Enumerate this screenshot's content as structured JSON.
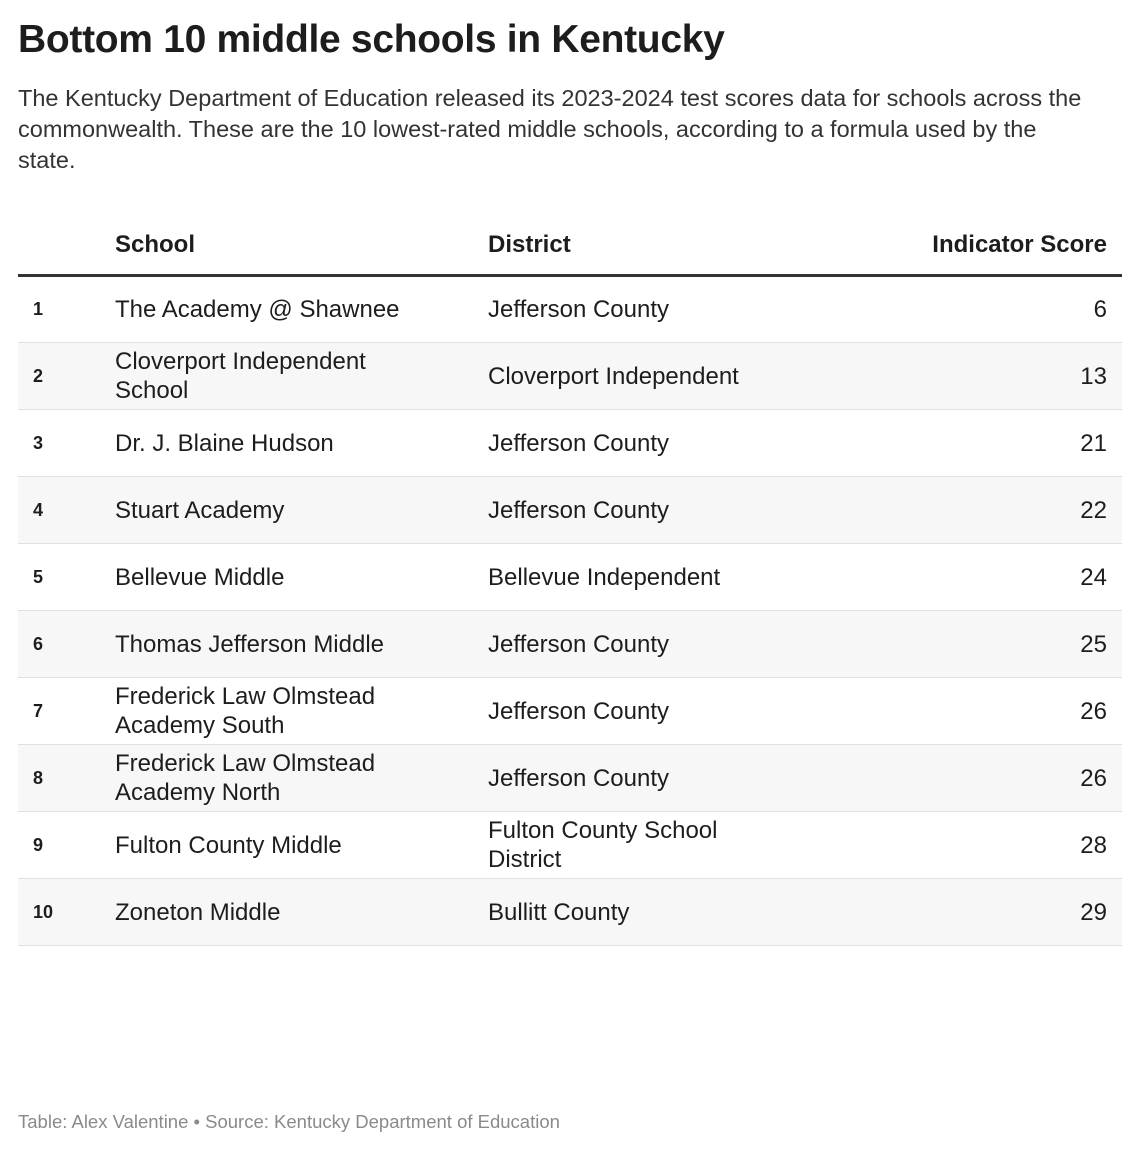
{
  "header": {
    "title": "Bottom 10 middle schools in Kentucky",
    "description": "The Kentucky Department of Education released its 2023-2024 test scores data for schools across the commonwealth. These are the 10 lowest-rated middle schools, according to a formula used by the state."
  },
  "table": {
    "columns": [
      "School",
      "District",
      "Indicator Score"
    ],
    "rows": [
      [
        "1",
        "The Academy @ Shawnee",
        "Jefferson County",
        "6"
      ],
      [
        "2",
        "Cloverport Independent School",
        "Cloverport Independent",
        "13"
      ],
      [
        "3",
        "Dr. J. Blaine Hudson",
        "Jefferson County",
        "21"
      ],
      [
        "4",
        "Stuart Academy",
        "Jefferson County",
        "22"
      ],
      [
        "5",
        "Bellevue Middle",
        "Bellevue Independent",
        "24"
      ],
      [
        "6",
        "Thomas Jefferson Middle",
        "Jefferson County",
        "25"
      ],
      [
        "7",
        "Frederick Law Olmstead Academy South",
        "Jefferson County",
        "26"
      ],
      [
        "8",
        "Frederick Law Olmstead Academy North",
        "Jefferson County",
        "26"
      ],
      [
        "9",
        "Fulton County Middle",
        "Fulton County School District",
        "28"
      ],
      [
        "10",
        "Zoneton Middle",
        "Bullitt County",
        "29"
      ]
    ]
  },
  "footer": {
    "credit": "Table: Alex Valentine • Source: Kentucky Department of Education"
  }
}
